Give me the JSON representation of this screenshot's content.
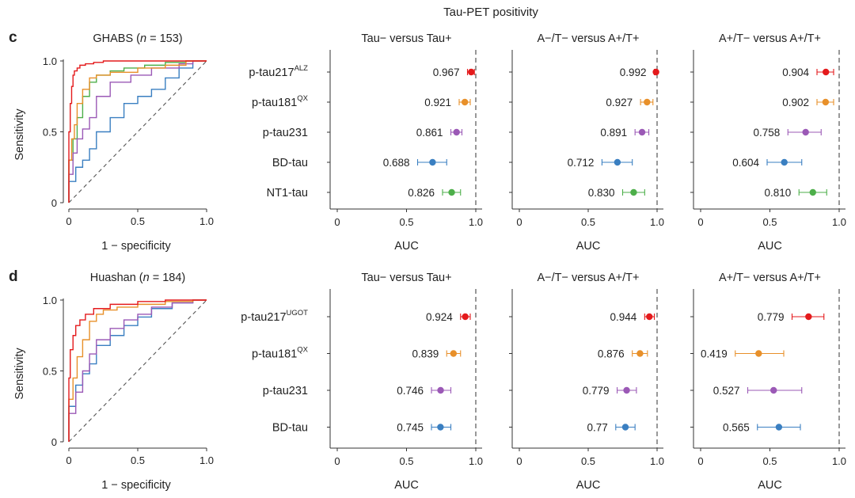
{
  "figure": {
    "header": "Tau-PET positivity",
    "rows": [
      {
        "letter": "c",
        "cohort_name": "GHABS",
        "cohort_n_prefix": "n",
        "cohort_n": "= 153",
        "roc": {
          "ylabel": "Sensitivity",
          "xlabel": "1 − specificity",
          "xticks": [
            "0",
            "0.5",
            "1.0"
          ],
          "yticks": [
            "0",
            "0.5",
            "1.0"
          ]
        },
        "biomarkers": [
          {
            "name": "p-tau217",
            "sup": "ALZ",
            "color": "#e41a1c"
          },
          {
            "name": "p-tau181",
            "sup": "QX",
            "color": "#e8902a"
          },
          {
            "name": "p-tau231",
            "sup": "",
            "color": "#9b59b6"
          },
          {
            "name": "BD-tau",
            "sup": "",
            "color": "#3a7fc1"
          },
          {
            "name": "NT1-tau",
            "sup": "",
            "color": "#4daf4a"
          }
        ],
        "panels": [
          {
            "title": "Tau− versus  Tau+",
            "values": [
              "0.967",
              "0.921",
              "0.861",
              "0.688",
              "0.826"
            ]
          },
          {
            "title": "A−/T− versus  A+/T+",
            "values": [
              "0.992",
              "0.927",
              "0.891",
              "0.712",
              "0.830"
            ]
          },
          {
            "title": "A+/T− versus  A+/T+",
            "values": [
              "0.904",
              "0.902",
              "0.758",
              "0.604",
              "0.810"
            ]
          }
        ]
      },
      {
        "letter": "d",
        "cohort_name": "Huashan",
        "cohort_n_prefix": "n",
        "cohort_n": "= 184",
        "roc": {
          "ylabel": "Sensitivity",
          "xlabel": "1 − specificity",
          "xticks": [
            "0",
            "0.5",
            "1.0"
          ],
          "yticks": [
            "0",
            "0.5",
            "1.0"
          ]
        },
        "biomarkers": [
          {
            "name": "p-tau217",
            "sup": "UGOT",
            "color": "#e41a1c"
          },
          {
            "name": "p-tau181",
            "sup": "QX",
            "color": "#e8902a"
          },
          {
            "name": "p-tau231",
            "sup": "",
            "color": "#9b59b6"
          },
          {
            "name": "BD-tau",
            "sup": "",
            "color": "#3a7fc1"
          }
        ],
        "panels": [
          {
            "title": "Tau− versus  Tau+",
            "values": [
              "0.924",
              "0.839",
              "0.746",
              "0.745"
            ]
          },
          {
            "title": "A−/T− versus A+/T+",
            "values": [
              "0.944",
              "0.876",
              "0.779",
              "0.77"
            ]
          },
          {
            "title": "A+/T− versus  A+/T+",
            "values": [
              "0.779",
              "0.419",
              "0.527",
              "0.565"
            ]
          }
        ]
      }
    ],
    "auc_axis": {
      "label": "AUC",
      "ticks": [
        "0",
        "0.5",
        "1.0"
      ],
      "reference_line": 1.0
    }
  },
  "chart_data": [
    {
      "type": "line",
      "panel": "c-roc",
      "title": "GHABS (n = 153)",
      "xlabel": "1 − specificity",
      "ylabel": "Sensitivity",
      "xlim": [
        0,
        1
      ],
      "ylim": [
        0,
        1
      ],
      "series": [
        {
          "name": "p-tau217ALZ",
          "color": "#e41a1c",
          "x": [
            0,
            0.01,
            0.02,
            0.03,
            0.04,
            0.06,
            0.08,
            0.12,
            0.18,
            0.25,
            0.4,
            0.6,
            1
          ],
          "y": [
            0,
            0.5,
            0.7,
            0.82,
            0.9,
            0.93,
            0.95,
            0.97,
            0.98,
            0.99,
            1,
            1,
            1
          ]
        },
        {
          "name": "p-tau181QX",
          "color": "#e8902a",
          "x": [
            0,
            0.02,
            0.04,
            0.06,
            0.1,
            0.15,
            0.2,
            0.3,
            0.5,
            0.7,
            0.85,
            0.95,
            1
          ],
          "y": [
            0,
            0.3,
            0.45,
            0.55,
            0.7,
            0.8,
            0.88,
            0.9,
            0.92,
            0.95,
            0.97,
            1,
            1
          ]
        },
        {
          "name": "p-tau231",
          "color": "#9b59b6",
          "x": [
            0,
            0.03,
            0.06,
            0.1,
            0.15,
            0.2,
            0.3,
            0.45,
            0.6,
            0.8,
            0.9,
            1
          ],
          "y": [
            0,
            0.2,
            0.35,
            0.45,
            0.52,
            0.6,
            0.75,
            0.85,
            0.9,
            0.95,
            0.98,
            1
          ]
        },
        {
          "name": "BD-tau",
          "color": "#3a7fc1",
          "x": [
            0,
            0.05,
            0.1,
            0.15,
            0.2,
            0.3,
            0.4,
            0.5,
            0.6,
            0.7,
            0.8,
            0.9,
            1
          ],
          "y": [
            0,
            0.15,
            0.25,
            0.3,
            0.38,
            0.5,
            0.6,
            0.7,
            0.75,
            0.8,
            0.88,
            0.95,
            1
          ]
        },
        {
          "name": "NT1-tau",
          "color": "#4daf4a",
          "x": [
            0,
            0.03,
            0.06,
            0.1,
            0.15,
            0.2,
            0.3,
            0.4,
            0.55,
            0.7,
            0.85,
            1
          ],
          "y": [
            0,
            0.3,
            0.45,
            0.6,
            0.75,
            0.85,
            0.9,
            0.93,
            0.95,
            0.97,
            0.99,
            1
          ]
        }
      ]
    },
    {
      "type": "line",
      "panel": "d-roc",
      "title": "Huashan (n = 184)",
      "xlabel": "1 − specificity",
      "ylabel": "Sensitivity",
      "xlim": [
        0,
        1
      ],
      "ylim": [
        0,
        1
      ],
      "series": [
        {
          "name": "p-tau217UGOT",
          "color": "#e41a1c",
          "x": [
            0,
            0.01,
            0.03,
            0.05,
            0.08,
            0.12,
            0.18,
            0.3,
            0.5,
            0.7,
            0.9,
            1
          ],
          "y": [
            0,
            0.45,
            0.65,
            0.75,
            0.82,
            0.86,
            0.9,
            0.94,
            0.97,
            0.99,
            1,
            1
          ]
        },
        {
          "name": "p-tau181QX",
          "color": "#e8902a",
          "x": [
            0,
            0.03,
            0.06,
            0.1,
            0.15,
            0.2,
            0.25,
            0.35,
            0.5,
            0.7,
            0.9,
            1
          ],
          "y": [
            0,
            0.3,
            0.45,
            0.6,
            0.72,
            0.85,
            0.9,
            0.93,
            0.95,
            0.97,
            0.99,
            1
          ]
        },
        {
          "name": "p-tau231",
          "color": "#9b59b6",
          "x": [
            0,
            0.05,
            0.1,
            0.15,
            0.2,
            0.3,
            0.4,
            0.5,
            0.6,
            0.75,
            0.9,
            1
          ],
          "y": [
            0,
            0.2,
            0.35,
            0.5,
            0.62,
            0.72,
            0.8,
            0.86,
            0.9,
            0.95,
            0.98,
            1
          ]
        },
        {
          "name": "BD-tau",
          "color": "#3a7fc1",
          "x": [
            0,
            0.05,
            0.1,
            0.15,
            0.2,
            0.3,
            0.4,
            0.5,
            0.6,
            0.75,
            0.9,
            1
          ],
          "y": [
            0,
            0.25,
            0.4,
            0.48,
            0.55,
            0.68,
            0.75,
            0.82,
            0.88,
            0.94,
            0.98,
            1
          ]
        }
      ]
    },
    {
      "type": "scatter",
      "panel": "c-forest",
      "xlabel": "AUC",
      "xlim": [
        0,
        1
      ],
      "categories": [
        "p-tau217ALZ",
        "p-tau181QX",
        "p-tau231",
        "BD-tau",
        "NT1-tau"
      ],
      "series": [
        {
          "name": "Tau− versus  Tau+",
          "values": [
            0.967,
            0.921,
            0.861,
            0.688,
            0.826
          ],
          "ci_low": [
            0.94,
            0.88,
            0.82,
            0.58,
            0.76
          ],
          "ci_high": [
            0.99,
            0.96,
            0.9,
            0.79,
            0.89
          ]
        },
        {
          "name": "A−/T− versus  A+/T+",
          "values": [
            0.992,
            0.927,
            0.891,
            0.712,
            0.83
          ],
          "ci_low": [
            0.98,
            0.88,
            0.84,
            0.6,
            0.75
          ],
          "ci_high": [
            1.0,
            0.97,
            0.94,
            0.82,
            0.91
          ]
        },
        {
          "name": "A+/T− versus  A+/T+",
          "values": [
            0.904,
            0.902,
            0.758,
            0.604,
            0.81
          ],
          "ci_low": [
            0.84,
            0.84,
            0.63,
            0.48,
            0.71
          ],
          "ci_high": [
            0.96,
            0.96,
            0.87,
            0.73,
            0.91
          ]
        }
      ]
    },
    {
      "type": "scatter",
      "panel": "d-forest",
      "xlabel": "AUC",
      "xlim": [
        0,
        1
      ],
      "categories": [
        "p-tau217UGOT",
        "p-tau181QX",
        "p-tau231",
        "BD-tau"
      ],
      "series": [
        {
          "name": "Tau− versus  Tau+",
          "values": [
            0.924,
            0.839,
            0.746,
            0.745
          ],
          "ci_low": [
            0.89,
            0.79,
            0.68,
            0.68
          ],
          "ci_high": [
            0.96,
            0.89,
            0.82,
            0.82
          ]
        },
        {
          "name": "A−/T− versus A+/T+",
          "values": [
            0.944,
            0.876,
            0.779,
            0.77
          ],
          "ci_low": [
            0.91,
            0.82,
            0.71,
            0.7
          ],
          "ci_high": [
            0.98,
            0.93,
            0.85,
            0.84
          ]
        },
        {
          "name": "A+/T− versus  A+/T+",
          "values": [
            0.779,
            0.419,
            0.527,
            0.565
          ],
          "ci_low": [
            0.66,
            0.25,
            0.34,
            0.41
          ],
          "ci_high": [
            0.89,
            0.6,
            0.73,
            0.72
          ]
        }
      ]
    }
  ]
}
